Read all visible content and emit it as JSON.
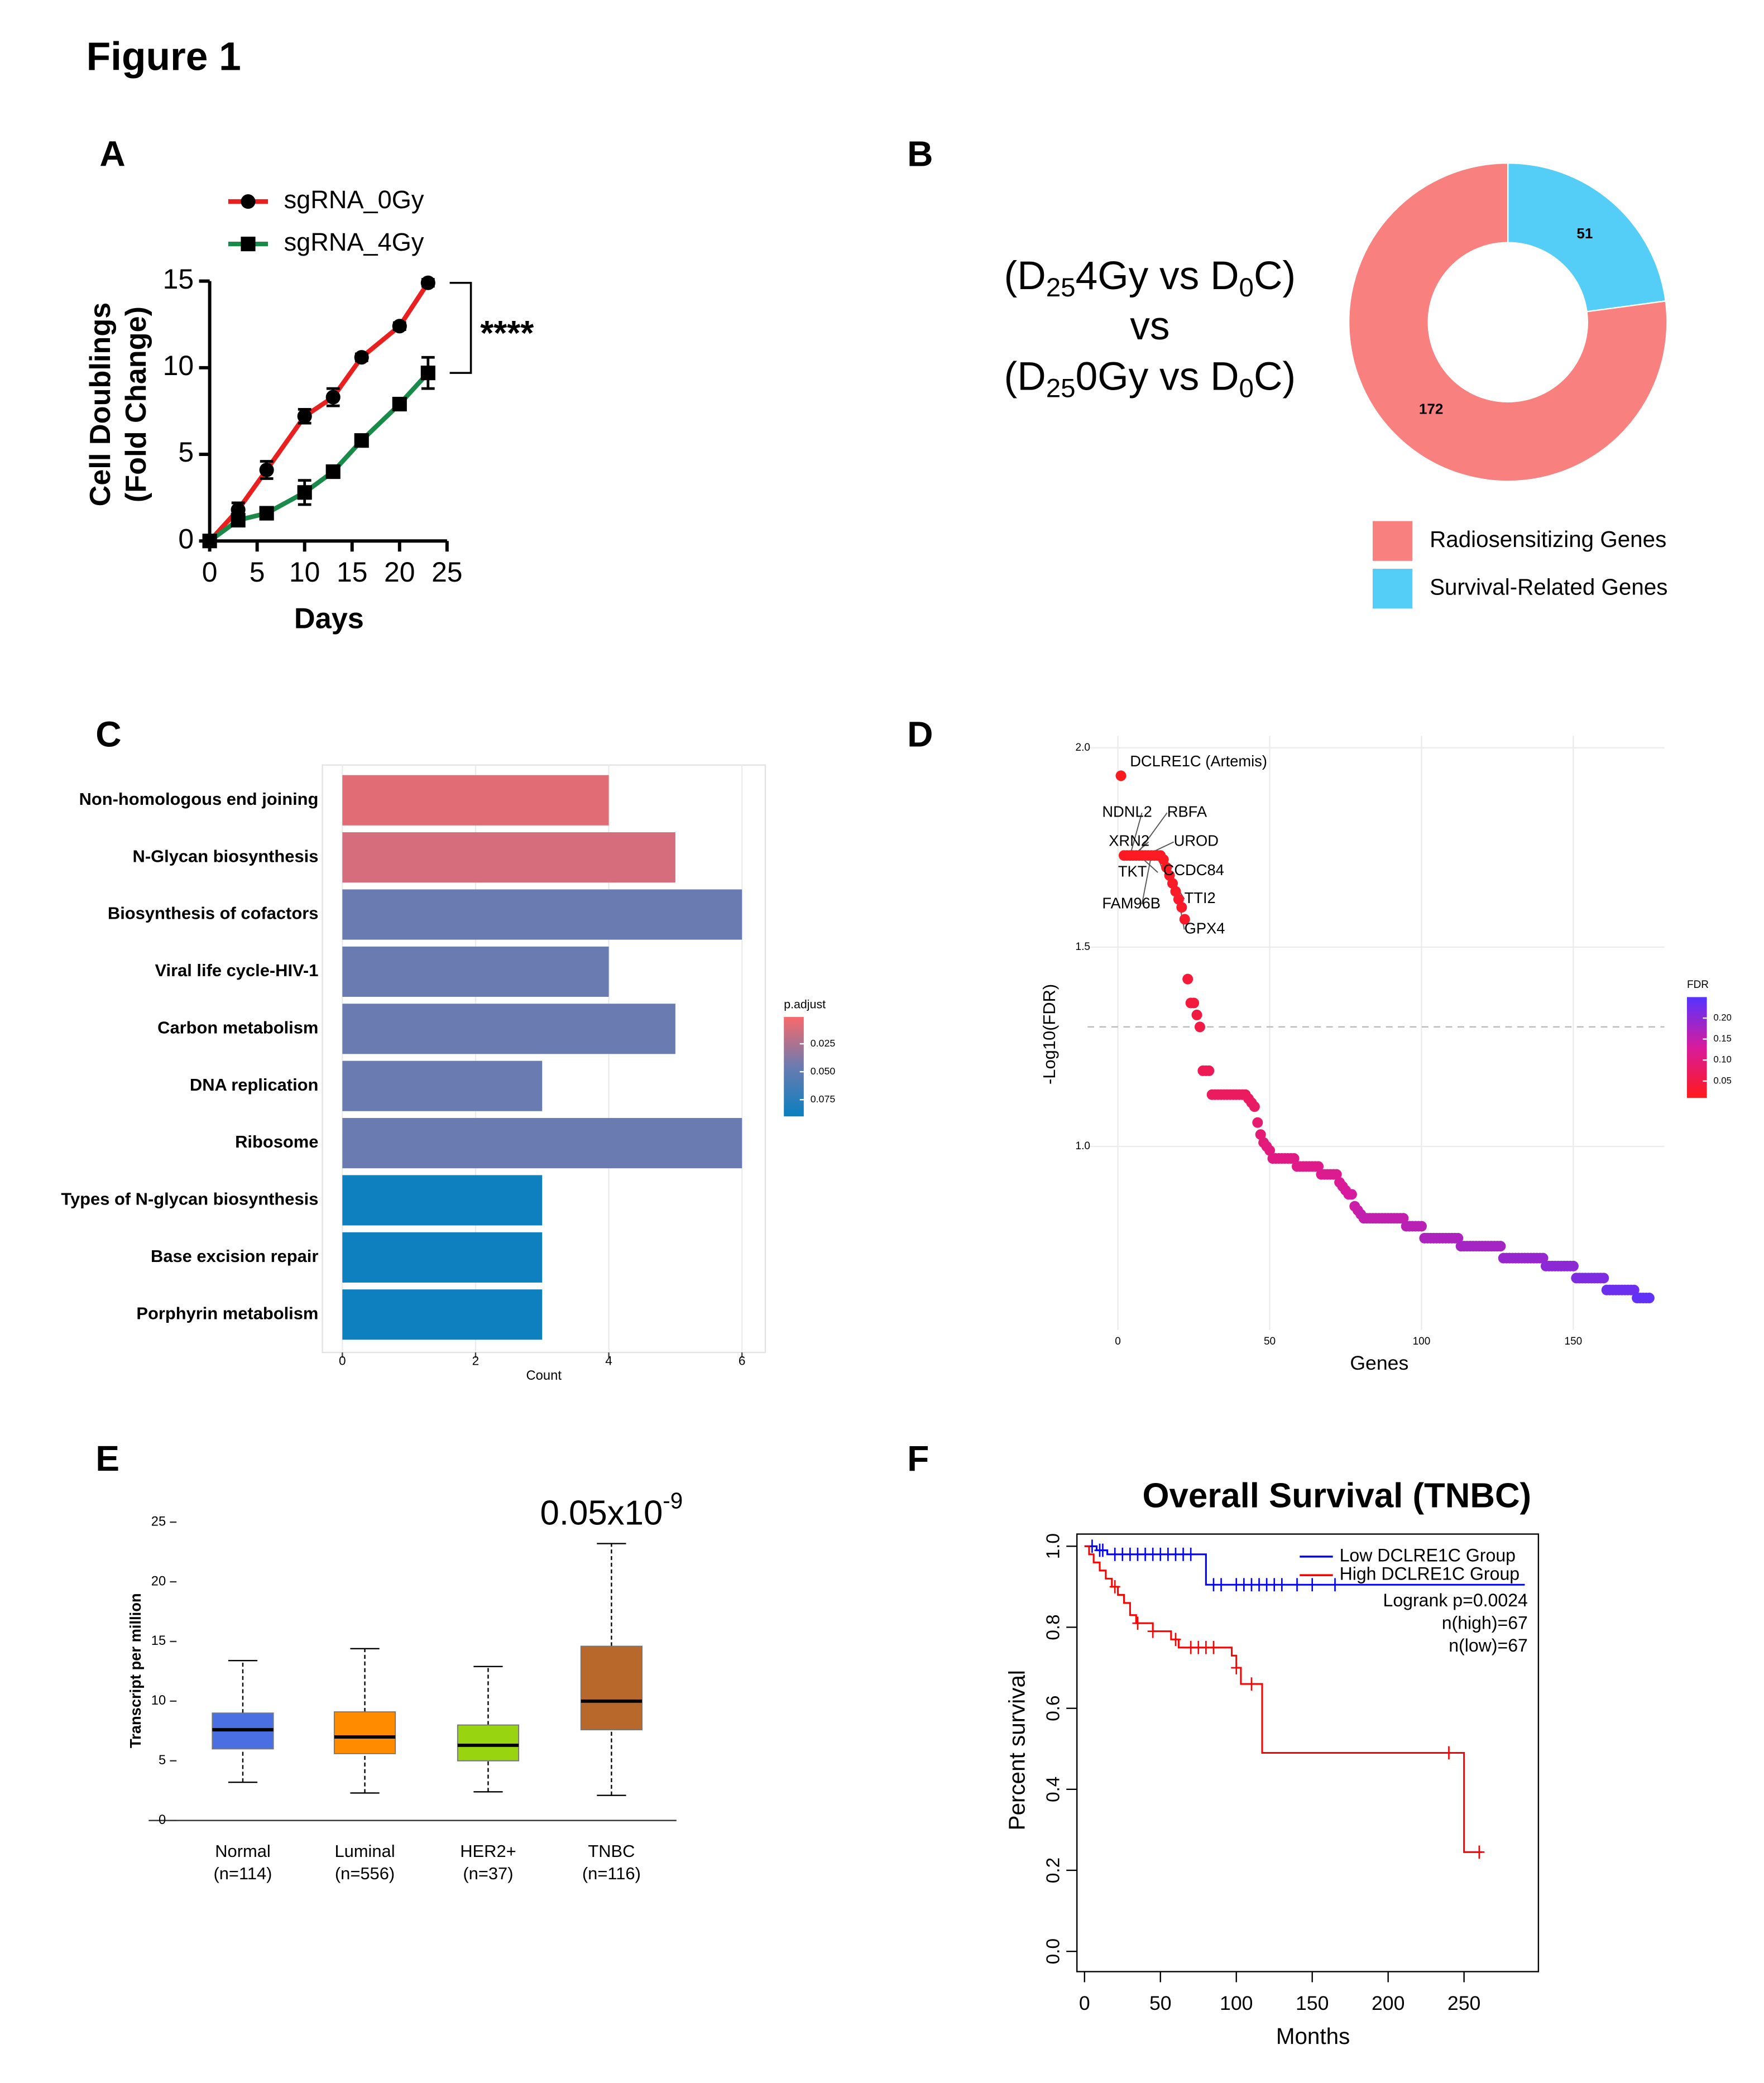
{
  "title": "Figure 1",
  "chart_data": [
    {
      "panel": "A",
      "type": "line",
      "x": [
        0,
        3,
        6,
        10,
        13,
        16,
        20,
        23
      ],
      "series": [
        {
          "name": "sgRNA_0Gy",
          "color": "#e8201f",
          "marker": "circle",
          "values": [
            0,
            1.8,
            4.1,
            7.2,
            8.3,
            10.6,
            12.4,
            14.9
          ],
          "errors": [
            0,
            0.4,
            0.5,
            0.4,
            0.5,
            0.2,
            0.2,
            0.2
          ]
        },
        {
          "name": "sgRNA_4Gy",
          "color": "#1a8a4a",
          "marker": "square",
          "values": [
            0,
            1.2,
            1.6,
            2.8,
            4.0,
            5.8,
            7.9,
            9.7
          ],
          "errors": [
            0,
            0.3,
            0.2,
            0.7,
            0.2,
            0.2,
            0.2,
            0.9
          ]
        }
      ],
      "x_label": "Days",
      "y_label": [
        "Cell Doublings",
        "(Fold Change)"
      ],
      "xlim": [
        0,
        25
      ],
      "xticks": [
        0,
        5,
        10,
        15,
        20,
        25
      ],
      "ylim": [
        0,
        15
      ],
      "yticks": [
        0,
        5,
        10,
        15
      ],
      "annotation": "****"
    },
    {
      "panel": "B",
      "type": "donut",
      "comparison": [
        [
          "(D",
          "25",
          "4Gy vs D",
          "0",
          "C)"
        ],
        [
          "vs"
        ],
        [
          "(D",
          "25",
          "0Gy vs D",
          "0",
          "C)"
        ]
      ],
      "categories": [
        "Radiosensitizing Genes",
        "Survival-Related Genes"
      ],
      "values": [
        172,
        51
      ],
      "colors": [
        "#f8807e",
        "#54cdf7"
      ]
    },
    {
      "panel": "C",
      "type": "barh",
      "categories": [
        "Non-homologous end joining",
        "N-Glycan biosynthesis",
        "Biosynthesis of cofactors",
        "Viral life cycle-HIV-1",
        "Carbon metabolism",
        "DNA replication",
        "Ribosome",
        "Types of N-glycan biosynthesis",
        "Base excision repair",
        "Porphyrin metabolism"
      ],
      "values": [
        4,
        5,
        6,
        4,
        5,
        3,
        6,
        3,
        3,
        3
      ],
      "p_adjust": [
        0.008,
        0.012,
        0.046,
        0.046,
        0.046,
        0.046,
        0.046,
        0.088,
        0.088,
        0.088
      ],
      "colormap": [
        "#f8696b",
        "#6a7bb0",
        "#0a7fc0"
      ],
      "clim": [
        0.001,
        0.09
      ],
      "legend_title": "p.adjust",
      "colorbar_ticks": [
        0.025,
        {
          "value": 0.05,
          "label": "0.050"
        },
        0.075
      ],
      "x_label": "Count",
      "xlim": [
        -0.3,
        6.35
      ],
      "xticks": [
        0,
        2,
        4,
        6
      ],
      "grid": true
    },
    {
      "panel": "D",
      "type": "scatter",
      "x": [
        1,
        2,
        3,
        4,
        5,
        6,
        7,
        8,
        9,
        10,
        11,
        12,
        13,
        14,
        15,
        16,
        17,
        18,
        19,
        20,
        21,
        22,
        23,
        24,
        25,
        26,
        27,
        28,
        29,
        30,
        31,
        32,
        33,
        34,
        35,
        36,
        37,
        38,
        39,
        40,
        41,
        42,
        43,
        44,
        45,
        46,
        47,
        48,
        49,
        50,
        51,
        52,
        53,
        54,
        55,
        56,
        57,
        58,
        59,
        60,
        61,
        62,
        63,
        64,
        65,
        66,
        67,
        68,
        69,
        70,
        71,
        72,
        73,
        74,
        75,
        76,
        77,
        78,
        79,
        80,
        81,
        82,
        83,
        84,
        85,
        86,
        87,
        88,
        89,
        90,
        91,
        92,
        93,
        94,
        95,
        96,
        97,
        98,
        99,
        100,
        101,
        102,
        103,
        104,
        105,
        106,
        107,
        108,
        109,
        110,
        111,
        112,
        113,
        114,
        115,
        116,
        117,
        118,
        119,
        120,
        121,
        122,
        123,
        124,
        125,
        126,
        127,
        128,
        129,
        130,
        131,
        132,
        133,
        134,
        135,
        136,
        137,
        138,
        139,
        140,
        141,
        142,
        143,
        144,
        145,
        146,
        147,
        148,
        149,
        150,
        151,
        152,
        153,
        154,
        155,
        156,
        157,
        158,
        159,
        160,
        161,
        162,
        163,
        164,
        165,
        166,
        167,
        168,
        169,
        170,
        171,
        172,
        173,
        174,
        175
      ],
      "values": [
        1.93,
        1.73,
        1.73,
        1.73,
        1.73,
        1.73,
        1.73,
        1.73,
        1.73,
        1.73,
        1.73,
        1.73,
        1.73,
        1.73,
        1.72,
        1.7,
        1.68,
        1.66,
        1.64,
        1.62,
        1.6,
        1.57,
        1.42,
        1.36,
        1.36,
        1.33,
        1.3,
        1.19,
        1.19,
        1.19,
        1.13,
        1.13,
        1.13,
        1.13,
        1.13,
        1.13,
        1.13,
        1.13,
        1.13,
        1.13,
        1.13,
        1.13,
        1.12,
        1.11,
        1.1,
        1.06,
        1.03,
        1.01,
        1,
        0.99,
        0.97,
        0.97,
        0.97,
        0.97,
        0.97,
        0.97,
        0.97,
        0.97,
        0.95,
        0.95,
        0.95,
        0.95,
        0.95,
        0.95,
        0.95,
        0.95,
        0.93,
        0.93,
        0.93,
        0.93,
        0.93,
        0.93,
        0.91,
        0.9,
        0.89,
        0.88,
        0.88,
        0.85,
        0.84,
        0.83,
        0.82,
        0.82,
        0.82,
        0.82,
        0.82,
        0.82,
        0.82,
        0.82,
        0.82,
        0.82,
        0.82,
        0.82,
        0.82,
        0.82,
        0.8,
        0.8,
        0.8,
        0.8,
        0.8,
        0.8,
        0.77,
        0.77,
        0.77,
        0.77,
        0.77,
        0.77,
        0.77,
        0.77,
        0.77,
        0.77,
        0.77,
        0.77,
        0.75,
        0.75,
        0.75,
        0.75,
        0.75,
        0.75,
        0.75,
        0.75,
        0.75,
        0.75,
        0.75,
        0.75,
        0.75,
        0.75,
        0.72,
        0.72,
        0.72,
        0.72,
        0.72,
        0.72,
        0.72,
        0.72,
        0.72,
        0.72,
        0.72,
        0.72,
        0.72,
        0.72,
        0.7,
        0.7,
        0.7,
        0.7,
        0.7,
        0.7,
        0.7,
        0.7,
        0.7,
        0.7,
        0.67,
        0.67,
        0.67,
        0.67,
        0.67,
        0.67,
        0.67,
        0.67,
        0.67,
        0.67,
        0.64,
        0.64,
        0.64,
        0.64,
        0.64,
        0.64,
        0.64,
        0.64,
        0.64,
        0.64,
        0.62,
        0.62,
        0.62,
        0.62,
        0.62
      ],
      "threshold": 1.3,
      "annotations": [
        "DCLRE1C (Artemis)",
        "NDNL2",
        "RBFA",
        "XRN2",
        "UROD",
        "TKT",
        "CCDC84",
        "FAM96B",
        "TTI2",
        "GPX4"
      ],
      "x_label": "Genes",
      "y_label": "-Log10(FDR)",
      "xlim": [
        -10,
        180
      ],
      "xticks": [
        0,
        50,
        100,
        150
      ],
      "ylim": [
        0.54,
        2.03
      ],
      "yticks": [
        {
          "value": 1,
          "label": "1.0"
        },
        1.5,
        {
          "value": 2,
          "label": "2.0"
        }
      ],
      "legend_title": "FDR",
      "colormap": [
        "#ff1a1a",
        "#d81b9c",
        "#5533ff"
      ],
      "clim": [
        0.01,
        0.25
      ],
      "colorbar_ticks": [
        0.05,
        {
          "value": 0.1,
          "label": "0.10"
        },
        0.15,
        {
          "value": 0.2,
          "label": "0.20"
        }
      ],
      "grid": true
    },
    {
      "panel": "E",
      "type": "box",
      "categories": [
        "Normal",
        "Luminal",
        "HER2+",
        "TNBC"
      ],
      "n_labels": [
        "(n=114)",
        "(n=556)",
        "(n=37)",
        "(n=116)"
      ],
      "whisker_low": [
        3.2,
        2.3,
        2.4,
        2.1
      ],
      "q1": [
        6.0,
        5.6,
        5.0,
        7.6
      ],
      "median": [
        7.6,
        7.0,
        6.3,
        10.0
      ],
      "q3": [
        9.0,
        9.1,
        8.0,
        14.6
      ],
      "whisker_high": [
        13.4,
        14.4,
        12.9,
        23.2
      ],
      "colors": [
        "#4a6fe3",
        "#ff8c00",
        "#98d40f",
        "#b8682a"
      ],
      "y_label": "Transcript per million",
      "ylim": [
        0,
        25
      ],
      "yticks": [
        0,
        5,
        10,
        15,
        20,
        25
      ],
      "annotation": [
        "0.05x10",
        "-9"
      ]
    },
    {
      "panel": "F",
      "type": "km",
      "title": "Overall Survival (TNBC)",
      "series": [
        {
          "name": "Low DCLRE1C Group",
          "color": "#0000ff",
          "x": [
            0,
            8,
            15,
            80,
            290
          ],
          "values": [
            1,
            0.99,
            0.98,
            0.905,
            0.905
          ],
          "censored": [
            5,
            10,
            12,
            20,
            25,
            30,
            35,
            40,
            45,
            50,
            55,
            60,
            65,
            70,
            85,
            90,
            100,
            105,
            110,
            115,
            120,
            125,
            130,
            140,
            150,
            165
          ]
        },
        {
          "name": "High DCLRE1C Group",
          "color": "#ff0000",
          "x": [
            0,
            3,
            6,
            10,
            14,
            18,
            22,
            26,
            30,
            34,
            45,
            57,
            62,
            97,
            100,
            103,
            117,
            250,
            262
          ],
          "values": [
            1,
            0.98,
            0.96,
            0.94,
            0.92,
            0.9,
            0.88,
            0.86,
            0.83,
            0.81,
            0.79,
            0.77,
            0.75,
            0.73,
            0.7,
            0.66,
            0.49,
            0.245,
            0.245
          ],
          "censored": [
            20,
            35,
            45,
            60,
            70,
            75,
            80,
            85,
            100,
            110,
            240,
            260
          ]
        }
      ],
      "stats": [
        "Logrank p=0.0024",
        "n(high)=67",
        "n(low)=67"
      ],
      "x_label": "Months",
      "y_label": "Percent survival",
      "xlim": [
        -5,
        299
      ],
      "xticks": [
        0,
        50,
        100,
        150,
        200,
        250
      ],
      "ylim": [
        -0.05,
        1.03
      ],
      "yticks": [
        {
          "value": 0,
          "label": "0.0"
        },
        0.2,
        0.4,
        0.6,
        0.8,
        {
          "value": 1,
          "label": "1.0"
        }
      ]
    }
  ]
}
